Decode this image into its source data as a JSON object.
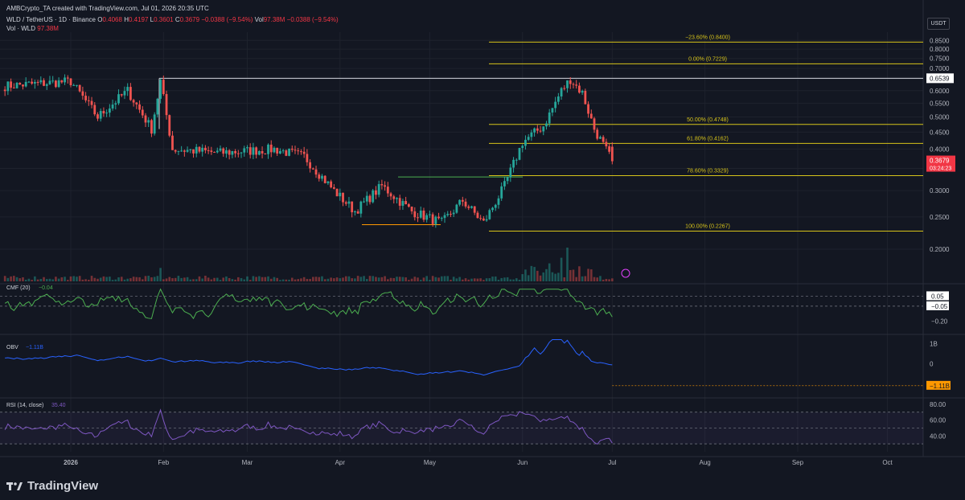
{
  "header": {
    "created_by": "AMBCrypto_TA created with TradingView.com, Jul 01, 2026 20:35 UTC",
    "symbol": "WLD / TetherUS · 1D · Binance",
    "ohlc_o_label": "O",
    "ohlc_o": "0.4068",
    "ohlc_h_label": "H",
    "ohlc_h": "0.4197",
    "ohlc_l_label": "L",
    "ohlc_l": "0.3601",
    "ohlc_c_label": "C",
    "ohlc_c": "0.3679",
    "change": "−0.0388 (−9.54%)",
    "vol_label": "Vol",
    "vol_value": "97.38M",
    "vol_change": "−0.0388 (−9.54%)",
    "vol_line_label": "Vol · WLD",
    "vol_line_value": "97.38M"
  },
  "currency": "USDT",
  "brand": {
    "name": "TradingView"
  },
  "colors": {
    "background": "#131722",
    "up": "#26a69a",
    "down": "#ef5350",
    "fib": "#d6c31a",
    "cmf": "#4caf50",
    "obv": "#2962ff",
    "rsi": "#7e57c2",
    "price_tag": "#f23645",
    "obv_tag": "#ff9800"
  },
  "chart_data": [
    {
      "type": "candlestick",
      "title": "WLD / TetherUS · 1D · Binance",
      "y_scale": "log",
      "ylim": [
        0.16,
        0.9
      ],
      "y_ticks": [
        "0.8500",
        "0.8000",
        "0.7500",
        "0.7000",
        "0.6500",
        "0.6000",
        "0.5500",
        "0.5000",
        "0.4500",
        "0.4000",
        "0.3500",
        "0.3000",
        "0.2500",
        "0.2000"
      ],
      "x_ticks": [
        "2026",
        "Feb",
        "Mar",
        "Apr",
        "May",
        "Jun",
        "Jul",
        "Aug",
        "Sep",
        "Oct"
      ],
      "last_price": "0.3679",
      "countdown": "03:24:23",
      "marked_level": "0.6539",
      "fibonacci": [
        {
          "label": "−23.60% (0.8400)",
          "value": 0.84
        },
        {
          "label": "0.00% (0.7229)",
          "value": 0.7229
        },
        {
          "label": "50.00% (0.4748)",
          "value": 0.4748
        },
        {
          "label": "61.80% (0.4162)",
          "value": 0.4162
        },
        {
          "label": "78.60% (0.3329)",
          "value": 0.3329
        },
        {
          "label": "100.00% (0.2267)",
          "value": 0.2267
        }
      ],
      "anchors": [
        {
          "date": "2026-01-01",
          "close": 0.64
        },
        {
          "date": "2026-01-10",
          "close": 0.5
        },
        {
          "date": "2026-01-20",
          "close": 0.6
        },
        {
          "date": "2026-01-28",
          "close": 0.46
        },
        {
          "date": "2026-01-31",
          "close": 0.64
        },
        {
          "date": "2026-02-04",
          "close": 0.4
        },
        {
          "date": "2026-02-20",
          "close": 0.39
        },
        {
          "date": "2026-03-10",
          "close": 0.4
        },
        {
          "date": "2026-03-20",
          "close": 0.38
        },
        {
          "date": "2026-03-30",
          "close": 0.3
        },
        {
          "date": "2026-04-06",
          "close": 0.26
        },
        {
          "date": "2026-04-15",
          "close": 0.31
        },
        {
          "date": "2026-04-25",
          "close": 0.26
        },
        {
          "date": "2026-05-05",
          "close": 0.24
        },
        {
          "date": "2026-05-12",
          "close": 0.28
        },
        {
          "date": "2026-05-19",
          "close": 0.24
        },
        {
          "date": "2026-05-26",
          "close": 0.31
        },
        {
          "date": "2026-06-01",
          "close": 0.42
        },
        {
          "date": "2026-06-08",
          "close": 0.47
        },
        {
          "date": "2026-06-14",
          "close": 0.6
        },
        {
          "date": "2026-06-17",
          "close": 0.65
        },
        {
          "date": "2026-06-21",
          "close": 0.59
        },
        {
          "date": "2026-06-25",
          "close": 0.46
        },
        {
          "date": "2026-07-01",
          "close": 0.3679
        }
      ]
    },
    {
      "type": "volume",
      "label": "Vol · WLD",
      "last": "97.38M"
    },
    {
      "type": "line",
      "name": "CMF (20)",
      "last": "−0.04",
      "y_ticks": [
        "0.05",
        "−0.05",
        "−0.20"
      ],
      "levels": [
        0.05,
        -0.05
      ],
      "ylim": [
        -0.3,
        0.15
      ]
    },
    {
      "type": "line",
      "name": "OBV",
      "last": "−1.11B",
      "y_ticks": [
        "1B",
        "0",
        "−1.11B"
      ],
      "ylim": [
        -1.6,
        1.3
      ]
    },
    {
      "type": "line",
      "name": "RSI (14, close)",
      "last": "35.40",
      "y_ticks": [
        "80.00",
        "60.00",
        "40.00"
      ],
      "band": [
        30,
        70
      ],
      "ylim": [
        20,
        85
      ]
    }
  ]
}
